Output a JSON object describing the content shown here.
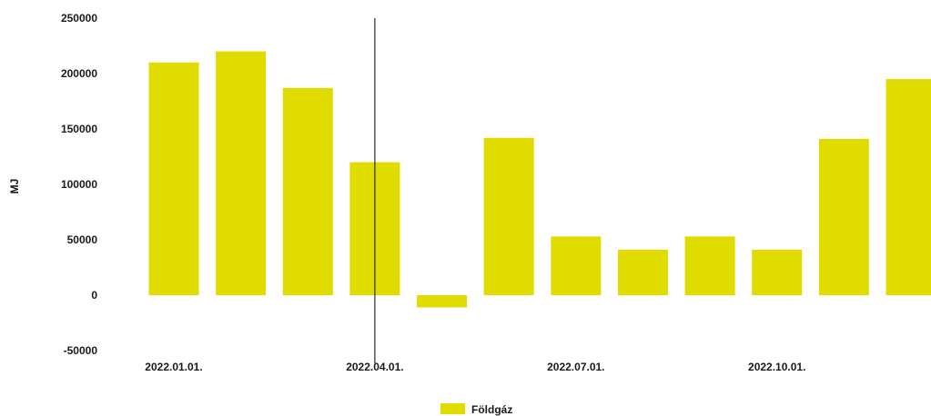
{
  "chart_data": {
    "type": "bar",
    "title": "",
    "xlabel": "",
    "ylabel": "MJ",
    "ylim": [
      -50000,
      250000
    ],
    "yticks": [
      250000,
      200000,
      150000,
      100000,
      50000,
      0,
      -50000
    ],
    "grid": false,
    "legend_position": "bottom-center",
    "crosshair_category": "2022.04.01.",
    "categories": [
      "2022.01.01.",
      "2022.02.01.",
      "2022.03.01.",
      "2022.04.01.",
      "2022.05.01.",
      "2022.06.01.",
      "2022.07.01.",
      "2022.08.01.",
      "2022.09.01.",
      "2022.10.01.",
      "2022.11.01.",
      "2022.12.01."
    ],
    "xtick_labels": [
      "2022.01.01.",
      "2022.04.01.",
      "2022.07.01.",
      "2022.10.01."
    ],
    "series": [
      {
        "name": "Földgáz",
        "color": "#e0dc00",
        "values": [
          210000,
          220000,
          187000,
          120000,
          -11000,
          142000,
          53000,
          41000,
          53000,
          41000,
          141000,
          195000
        ]
      }
    ]
  }
}
